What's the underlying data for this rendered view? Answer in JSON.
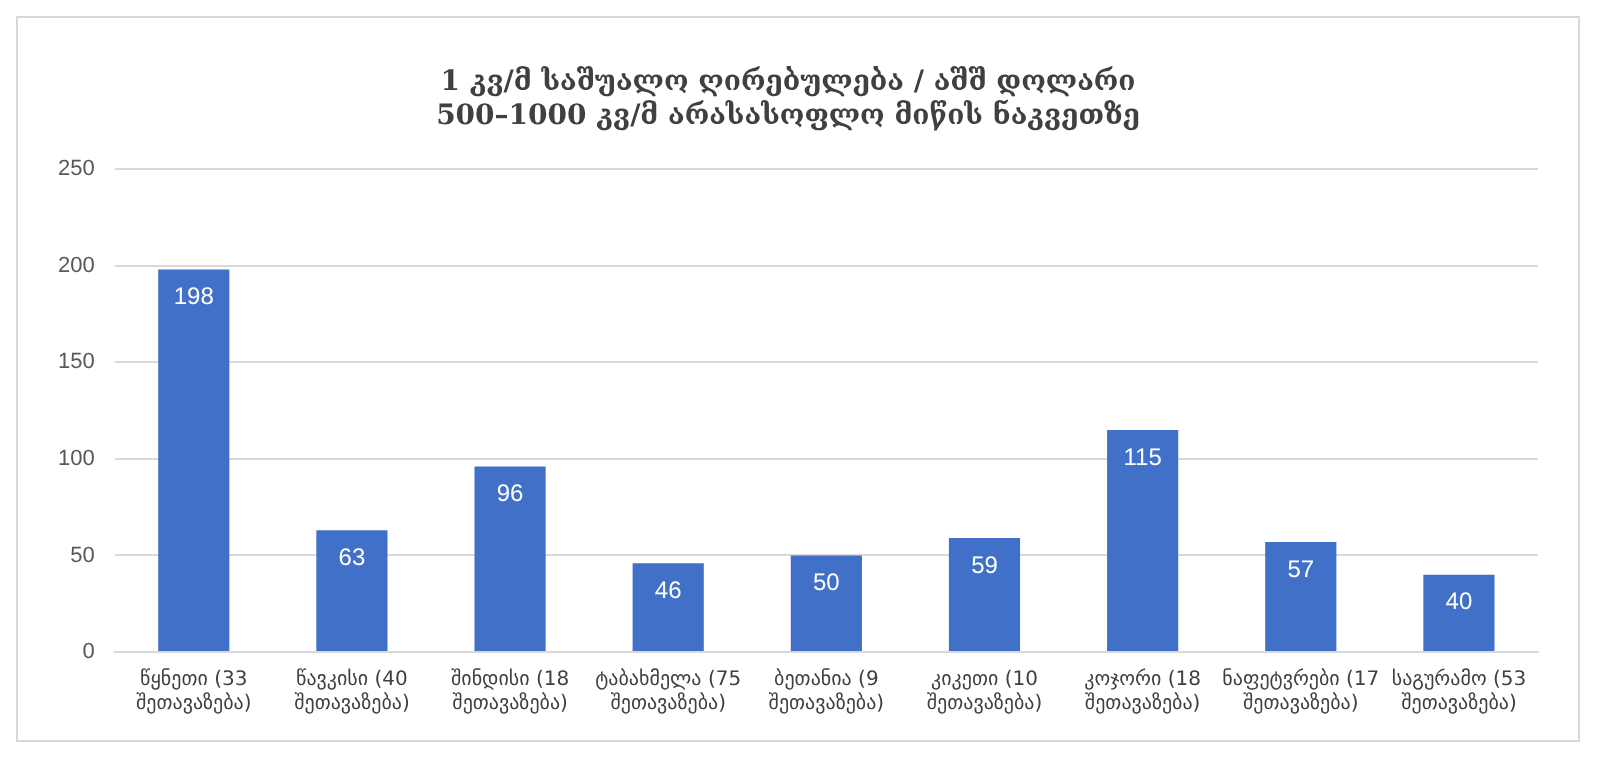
{
  "chart_data": {
    "type": "bar",
    "title": "1 კვ/მ საშუალო ღირებულება / აშშ დოლარი\n500–1000 კვ/მ არასასოფლო მიწის ნაკვეთზე",
    "categories": [
      "წყნეთი (33 შეთავაზება)",
      "წავკისი (40 შეთავაზება)",
      "შინდისი (18 შეთავაზება)",
      "ტაბახმელა (75 შეთავაზება)",
      "ბეთანია (9 შეთავაზება)",
      "კიკეთი (10 შეთავაზება)",
      "კოჯორი (18 შეთავაზება)",
      "ნაფეტვრები (17 შეთავაზება)",
      "საგურამო (53 შეთავაზება)"
    ],
    "values": [
      198,
      63,
      96,
      46,
      50,
      59,
      115,
      57,
      40
    ],
    "color": "#4170c8",
    "ylim": [
      0,
      250
    ],
    "yticks": [
      0,
      50,
      100,
      150,
      200,
      250
    ],
    "grid": "y",
    "data_labels": true,
    "legend": false
  }
}
